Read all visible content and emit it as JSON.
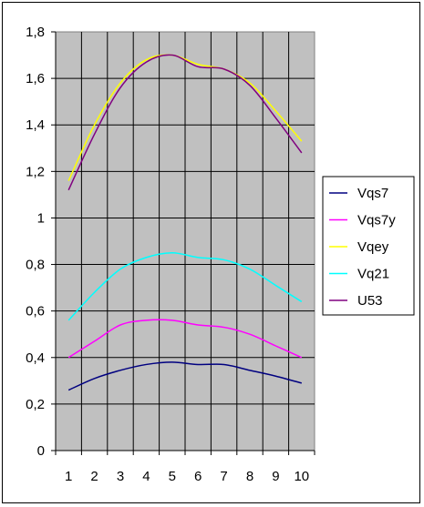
{
  "chart_data": {
    "type": "line",
    "title": "",
    "xlabel": "",
    "ylabel": "",
    "categories": [
      "1",
      "2",
      "3",
      "4",
      "5",
      "6",
      "7",
      "8",
      "9",
      "10"
    ],
    "ylim": [
      0,
      1.8
    ],
    "y_ticks": [
      "0",
      "0,2",
      "0,4",
      "0,6",
      "0,8",
      "1",
      "1,2",
      "1,4",
      "1,6",
      "1,8"
    ],
    "grid": true,
    "plot_background": "#c0c0c0",
    "legend_position": "right",
    "series": [
      {
        "name": "Vqs7",
        "color": "#000080",
        "values": [
          0.26,
          0.31,
          0.345,
          0.37,
          0.38,
          0.37,
          0.37,
          0.345,
          0.32,
          0.29
        ]
      },
      {
        "name": "Vqs7y",
        "color": "#ff00ff",
        "values": [
          0.4,
          0.47,
          0.54,
          0.56,
          0.56,
          0.54,
          0.53,
          0.5,
          0.45,
          0.4
        ]
      },
      {
        "name": "Vqey",
        "color": "#ffff00",
        "values": [
          1.16,
          1.4,
          1.58,
          1.68,
          1.7,
          1.66,
          1.64,
          1.58,
          1.46,
          1.33
        ]
      },
      {
        "name": "Vq21",
        "color": "#00ffff",
        "values": [
          0.56,
          0.68,
          0.78,
          0.83,
          0.85,
          0.83,
          0.82,
          0.78,
          0.71,
          0.64
        ]
      },
      {
        "name": "U53",
        "color": "#800080",
        "values": [
          1.12,
          1.36,
          1.56,
          1.67,
          1.7,
          1.65,
          1.64,
          1.57,
          1.43,
          1.28
        ]
      }
    ]
  }
}
